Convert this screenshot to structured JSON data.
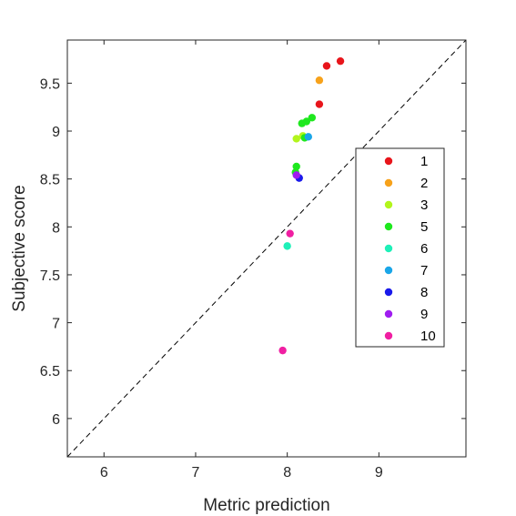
{
  "chart_data": {
    "type": "scatter",
    "title": "",
    "xlabel": "Metric prediction",
    "ylabel": "Subjective score",
    "xlim": [
      5.6,
      9.95
    ],
    "ylim": [
      5.6,
      9.95
    ],
    "xticks": [
      "6",
      "7",
      "8",
      "9"
    ],
    "yticks": [
      "6",
      "6.5",
      "7",
      "7.5",
      "8",
      "8.5",
      "9",
      "9.5"
    ],
    "xtick_values": [
      6,
      7,
      8,
      9
    ],
    "ytick_values": [
      6,
      6.5,
      7,
      7.5,
      8,
      8.5,
      9,
      9.5
    ],
    "grid": false,
    "reference_line": "y = x (dashed)",
    "legend_position": "right",
    "series": [
      {
        "name": "1",
        "color": "#e8151b",
        "points": [
          [
            8.58,
            9.73
          ],
          [
            8.43,
            9.68
          ],
          [
            8.35,
            9.28
          ]
        ]
      },
      {
        "name": "2",
        "color": "#f7a21b",
        "points": [
          [
            8.35,
            9.53
          ]
        ]
      },
      {
        "name": "3",
        "color": "#b2f51c",
        "points": [
          [
            8.1,
            8.92
          ],
          [
            8.17,
            8.95
          ]
        ]
      },
      {
        "name": "5",
        "color": "#1ee81e",
        "points": [
          [
            8.27,
            9.14
          ],
          [
            8.16,
            9.08
          ],
          [
            8.21,
            9.1
          ],
          [
            8.1,
            8.63
          ],
          [
            8.09,
            8.57
          ],
          [
            8.19,
            8.93
          ]
        ]
      },
      {
        "name": "6",
        "color": "#1ef0b8",
        "points": [
          [
            8.0,
            7.8
          ]
        ]
      },
      {
        "name": "7",
        "color": "#1aa6e8",
        "points": [
          [
            8.23,
            8.94
          ]
        ]
      },
      {
        "name": "8",
        "color": "#1a1aeb",
        "points": [
          [
            8.13,
            8.51
          ]
        ]
      },
      {
        "name": "9",
        "color": "#a01df0",
        "points": [
          [
            8.1,
            8.54
          ]
        ]
      },
      {
        "name": "10",
        "color": "#f01fa2",
        "points": [
          [
            8.03,
            7.93
          ],
          [
            7.95,
            6.71
          ]
        ]
      }
    ]
  }
}
